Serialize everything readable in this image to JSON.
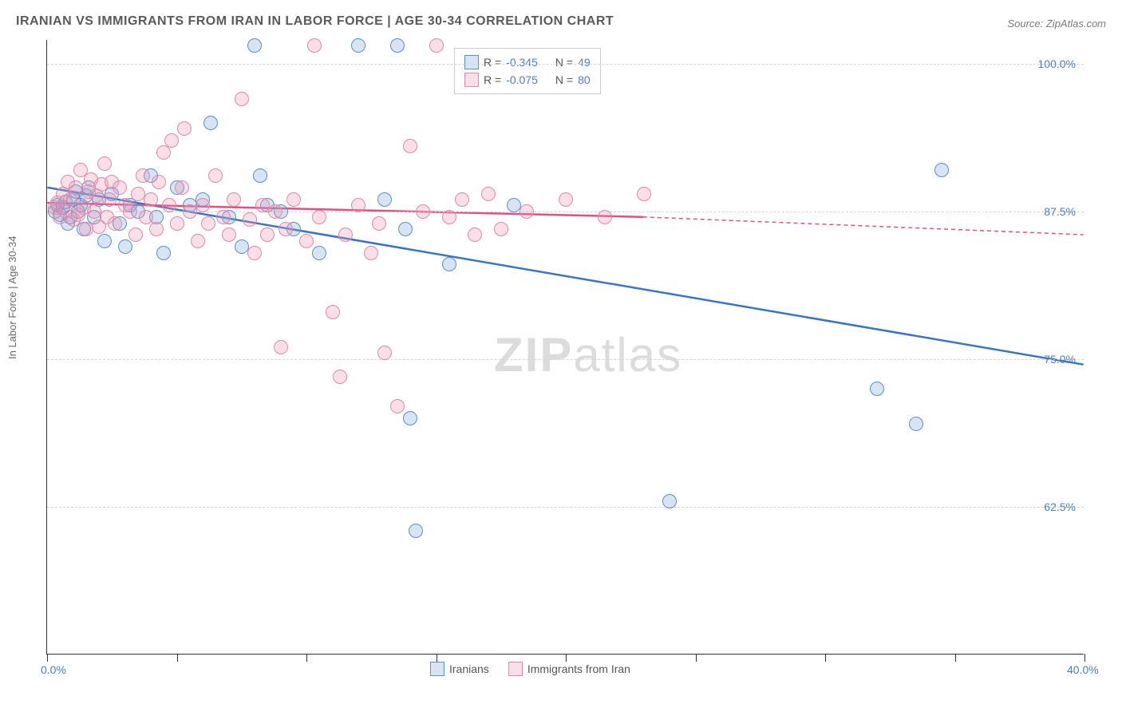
{
  "title": "IRANIAN VS IMMIGRANTS FROM IRAN IN LABOR FORCE | AGE 30-34 CORRELATION CHART",
  "source": "Source: ZipAtlas.com",
  "ylabel": "In Labor Force | Age 30-34",
  "watermark_bold": "ZIP",
  "watermark_rest": "atlas",
  "chart": {
    "type": "scatter",
    "xlim": [
      0,
      40
    ],
    "ylim": [
      50,
      102
    ],
    "ytick_values": [
      62.5,
      75.0,
      87.5,
      100.0
    ],
    "ytick_labels": [
      "62.5%",
      "75.0%",
      "87.5%",
      "100.0%"
    ],
    "xtick_values": [
      0,
      5,
      10,
      15,
      20,
      25,
      30,
      35,
      40
    ],
    "xtick_labels": {
      "0": "0.0%",
      "40": "40.0%"
    },
    "grid_color": "#d5d5d5",
    "background_color": "#ffffff",
    "point_radius": 9,
    "series": [
      {
        "key": "iranians",
        "label": "Iranians",
        "fill": "rgba(120,165,220,0.30)",
        "stroke": "#5a8fd0",
        "line_color": "#3a74c4",
        "r_value": "-0.345",
        "n_value": "49",
        "trend": {
          "x1": 0,
          "y1": 89.5,
          "x2": 40,
          "y2": 74.5,
          "extend_dashed": false
        },
        "points": [
          [
            0.3,
            87.5
          ],
          [
            0.4,
            88.0
          ],
          [
            0.5,
            87.2
          ],
          [
            0.6,
            87.8
          ],
          [
            0.7,
            88.3
          ],
          [
            0.8,
            86.5
          ],
          [
            0.9,
            87.0
          ],
          [
            1.0,
            88.5
          ],
          [
            1.1,
            89.2
          ],
          [
            1.2,
            87.5
          ],
          [
            1.3,
            88.0
          ],
          [
            1.4,
            86.0
          ],
          [
            1.5,
            88.8
          ],
          [
            1.6,
            89.5
          ],
          [
            1.8,
            87.0
          ],
          [
            2.0,
            88.5
          ],
          [
            2.2,
            85.0
          ],
          [
            2.5,
            89.0
          ],
          [
            2.8,
            86.5
          ],
          [
            3.0,
            84.5
          ],
          [
            3.2,
            88.0
          ],
          [
            3.5,
            87.5
          ],
          [
            4.0,
            90.5
          ],
          [
            4.2,
            87.0
          ],
          [
            4.5,
            84.0
          ],
          [
            5.0,
            89.5
          ],
          [
            5.5,
            88.0
          ],
          [
            6.0,
            88.5
          ],
          [
            6.3,
            95.0
          ],
          [
            7.0,
            87.0
          ],
          [
            7.5,
            84.5
          ],
          [
            8.0,
            101.5
          ],
          [
            8.2,
            90.5
          ],
          [
            8.5,
            88.0
          ],
          [
            9.0,
            87.5
          ],
          [
            9.5,
            86.0
          ],
          [
            10.5,
            84.0
          ],
          [
            12.0,
            101.5
          ],
          [
            13.0,
            88.5
          ],
          [
            13.5,
            101.5
          ],
          [
            13.8,
            86.0
          ],
          [
            14.0,
            70.0
          ],
          [
            14.2,
            60.5
          ],
          [
            15.5,
            83.0
          ],
          [
            18.0,
            88.0
          ],
          [
            24.0,
            63.0
          ],
          [
            32.0,
            72.5
          ],
          [
            33.5,
            69.5
          ],
          [
            34.5,
            91.0
          ]
        ]
      },
      {
        "key": "immigrants",
        "label": "Immigrants from Iran",
        "fill": "rgba(240,150,180,0.30)",
        "stroke": "#e089a8",
        "line_color": "#e05080",
        "r_value": "-0.075",
        "n_value": "80",
        "trend": {
          "x1": 0,
          "y1": 88.2,
          "x2": 23,
          "y2": 87.0,
          "extend_x": 40,
          "extend_y": 85.5
        },
        "points": [
          [
            0.3,
            87.8
          ],
          [
            0.4,
            88.2
          ],
          [
            0.5,
            87.0
          ],
          [
            0.6,
            89.0
          ],
          [
            0.7,
            87.5
          ],
          [
            0.8,
            90.0
          ],
          [
            0.9,
            88.5
          ],
          [
            1.0,
            86.8
          ],
          [
            1.1,
            89.5
          ],
          [
            1.2,
            87.2
          ],
          [
            1.3,
            91.0
          ],
          [
            1.4,
            87.8
          ],
          [
            1.5,
            86.0
          ],
          [
            1.6,
            89.2
          ],
          [
            1.7,
            90.2
          ],
          [
            1.8,
            87.5
          ],
          [
            1.9,
            88.8
          ],
          [
            2.0,
            86.2
          ],
          [
            2.1,
            89.8
          ],
          [
            2.2,
            91.5
          ],
          [
            2.3,
            87.0
          ],
          [
            2.4,
            88.5
          ],
          [
            2.5,
            90.0
          ],
          [
            2.6,
            86.5
          ],
          [
            2.8,
            89.5
          ],
          [
            3.0,
            88.0
          ],
          [
            3.2,
            87.5
          ],
          [
            3.4,
            85.5
          ],
          [
            3.5,
            89.0
          ],
          [
            3.7,
            90.5
          ],
          [
            3.8,
            87.0
          ],
          [
            4.0,
            88.5
          ],
          [
            4.2,
            86.0
          ],
          [
            4.3,
            90.0
          ],
          [
            4.5,
            92.5
          ],
          [
            4.7,
            88.0
          ],
          [
            4.8,
            93.5
          ],
          [
            5.0,
            86.5
          ],
          [
            5.2,
            89.5
          ],
          [
            5.3,
            94.5
          ],
          [
            5.5,
            87.5
          ],
          [
            5.8,
            85.0
          ],
          [
            6.0,
            88.0
          ],
          [
            6.2,
            86.5
          ],
          [
            6.5,
            90.5
          ],
          [
            6.8,
            87.0
          ],
          [
            7.0,
            85.5
          ],
          [
            7.2,
            88.5
          ],
          [
            7.5,
            97.0
          ],
          [
            7.8,
            86.8
          ],
          [
            8.0,
            84.0
          ],
          [
            8.3,
            88.0
          ],
          [
            8.5,
            85.5
          ],
          [
            8.8,
            87.5
          ],
          [
            9.0,
            76.0
          ],
          [
            9.2,
            86.0
          ],
          [
            9.5,
            88.5
          ],
          [
            10.0,
            85.0
          ],
          [
            10.3,
            101.5
          ],
          [
            10.5,
            87.0
          ],
          [
            11.0,
            79.0
          ],
          [
            11.3,
            73.5
          ],
          [
            11.5,
            85.5
          ],
          [
            12.0,
            88.0
          ],
          [
            12.5,
            84.0
          ],
          [
            12.8,
            86.5
          ],
          [
            13.0,
            75.5
          ],
          [
            13.5,
            71.0
          ],
          [
            14.0,
            93.0
          ],
          [
            14.5,
            87.5
          ],
          [
            15.0,
            101.5
          ],
          [
            15.5,
            87.0
          ],
          [
            16.0,
            88.5
          ],
          [
            16.5,
            85.5
          ],
          [
            17.0,
            89.0
          ],
          [
            17.5,
            86.0
          ],
          [
            18.5,
            87.5
          ],
          [
            20.0,
            88.5
          ],
          [
            21.5,
            87.0
          ],
          [
            23.0,
            89.0
          ]
        ]
      }
    ]
  },
  "legend_top_labels": {
    "R_prefix": "R =",
    "N_prefix": "N ="
  },
  "colors": {
    "tick_label": "#4a7ec9",
    "axis": "#333333"
  }
}
